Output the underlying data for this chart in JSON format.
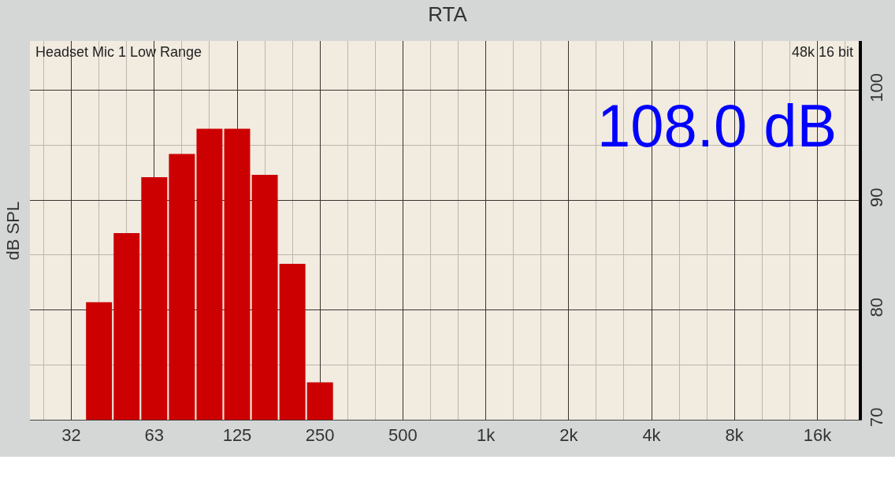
{
  "chart_data": {
    "type": "bar",
    "title": "RTA",
    "ylabel": "dB SPL",
    "categories": [
      null,
      "32",
      null,
      null,
      "63",
      null,
      null,
      "125",
      null,
      null,
      "250",
      null,
      null,
      "500",
      null,
      null,
      "1k",
      null,
      null,
      "2k",
      null,
      null,
      "4k",
      null,
      null,
      "8k",
      null,
      null,
      "16k",
      null
    ],
    "values": [
      null,
      null,
      80.7,
      87.0,
      92.1,
      94.2,
      96.5,
      96.5,
      92.3,
      84.2,
      73.4,
      null,
      null,
      null,
      null,
      null,
      null,
      null,
      null,
      null,
      null,
      null,
      null,
      null,
      null,
      null,
      null,
      null,
      null,
      null
    ],
    "color": "#cc0000",
    "ylim": [
      70,
      104.5
    ],
    "yticks": [
      70,
      80,
      90,
      100
    ],
    "grid": true,
    "legend": false,
    "annotations": [
      "Headset Mic 1 Low Range",
      "48k 16 bit",
      "108.0 dB"
    ]
  }
}
